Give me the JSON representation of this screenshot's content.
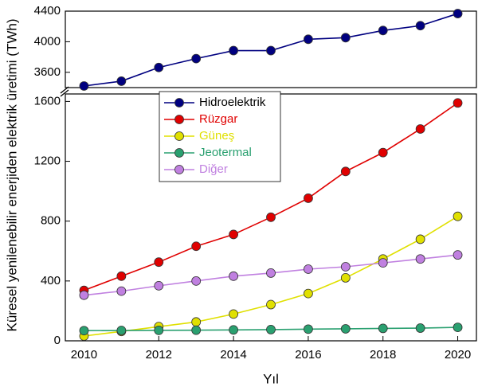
{
  "chart_data": {
    "type": "line",
    "x_label": "Yıl",
    "y_label": "Küresel yenilenebilir enerjiden elektrik üretimi (TWh)",
    "x": [
      2010,
      2011,
      2012,
      2013,
      2014,
      2015,
      2016,
      2017,
      2018,
      2019,
      2020
    ],
    "xlim": [
      2009.5,
      2020.5
    ],
    "xticks": [
      2010,
      2012,
      2014,
      2016,
      2018,
      2020
    ],
    "ylim": [
      0,
      1650
    ],
    "yticks": [
      0,
      400,
      800,
      1200,
      1600
    ],
    "y_upper_lim": [
      3400,
      4400
    ],
    "y_upper_ticks": [
      3600,
      4000,
      4400
    ],
    "legend_position": "upper left",
    "series": [
      {
        "name": "Hidroelektrik",
        "color": "#000080",
        "axis": "upper",
        "values": [
          3421,
          3484,
          3663,
          3779,
          3884,
          3884,
          4032,
          4053,
          4147,
          4210,
          4368
        ]
      },
      {
        "name": "Rüzgar",
        "color": "#e00000",
        "values": [
          337,
          432,
          526,
          632,
          711,
          826,
          953,
          1132,
          1258,
          1416,
          1590
        ]
      },
      {
        "name": "Güneş",
        "color": "#e0e000",
        "values": [
          32,
          63,
          95,
          126,
          179,
          242,
          316,
          421,
          547,
          679,
          832
        ]
      },
      {
        "name": "Jeotermal",
        "color": "#2aa070",
        "values": [
          68,
          69,
          70,
          71,
          73,
          75,
          78,
          80,
          83,
          85,
          90
        ]
      },
      {
        "name": "Diğer",
        "color": "#c080e0",
        "values": [
          305,
          332,
          368,
          400,
          432,
          453,
          479,
          495,
          521,
          547,
          574
        ]
      }
    ]
  }
}
